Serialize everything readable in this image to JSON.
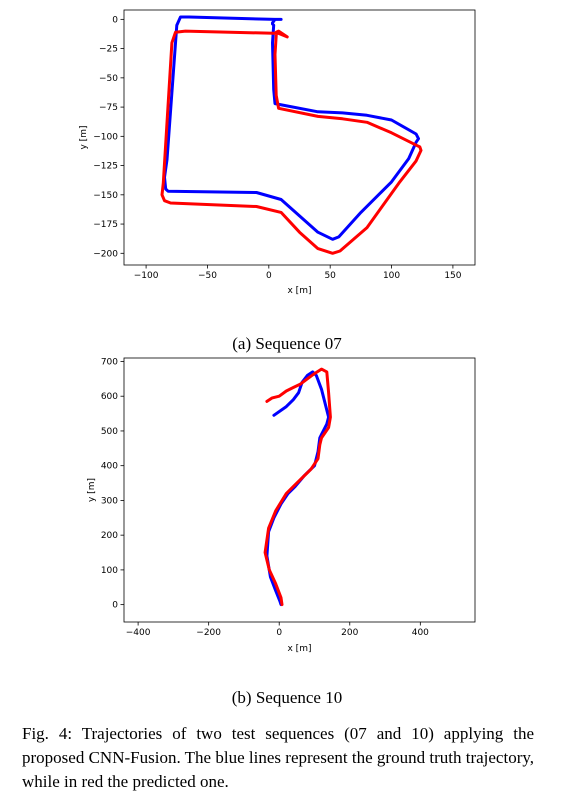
{
  "chart_data": [
    {
      "type": "line",
      "caption": "(a) Sequence 07",
      "xlabel": "x [m]",
      "ylabel": "y [m]",
      "xlim": [
        -118,
        168
      ],
      "ylim": [
        -210,
        8
      ],
      "xticks": [
        -100,
        -50,
        0,
        50,
        100,
        150
      ],
      "yticks": [
        0,
        -25,
        -50,
        -75,
        -100,
        -125,
        -150,
        -175,
        -200
      ],
      "xtick_labels": [
        "−100",
        "−50",
        "0",
        "50",
        "100",
        "150"
      ],
      "ytick_labels": [
        "0",
        "−25",
        "−50",
        "−75",
        "−100",
        "−125",
        "−150",
        "−175",
        "−200"
      ],
      "grid": false,
      "series": [
        {
          "color": "#0000ff",
          "x": [
            10,
            5,
            -65,
            -72,
            -75,
            -83,
            -85,
            -84,
            -82,
            -10,
            10,
            25,
            40,
            52,
            57,
            75,
            100,
            114,
            120,
            122,
            120,
            100,
            80,
            60,
            40,
            5,
            4,
            3,
            4,
            3,
            3,
            5
          ],
          "y": [
            0,
            0,
            2,
            2,
            -5,
            -120,
            -135,
            -145,
            -147,
            -148,
            -154,
            -168,
            -182,
            -188,
            -186,
            -165,
            -139,
            -119,
            -105,
            -102,
            -98,
            -86,
            -82,
            -80,
            -79,
            -72,
            -60,
            -20,
            -5,
            -4,
            -3,
            0
          ]
        },
        {
          "color": "#ff0000",
          "x": [
            15,
            8,
            -68,
            -76,
            -79,
            -86,
            -87,
            -85,
            -80,
            -10,
            10,
            25,
            40,
            52,
            58,
            80,
            106,
            120,
            124,
            123,
            121,
            100,
            80,
            60,
            40,
            8,
            6,
            5,
            6,
            6,
            8,
            15
          ],
          "y": [
            -15,
            -12,
            -10,
            -11,
            -20,
            -140,
            -150,
            -155,
            -157,
            -160,
            -165,
            -182,
            -196,
            -200,
            -198,
            -178,
            -140,
            -121,
            -112,
            -109,
            -108,
            -97,
            -88,
            -85,
            -83,
            -76,
            -65,
            -30,
            -14,
            -11,
            -10,
            -15
          ]
        }
      ]
    },
    {
      "type": "line",
      "caption": "(b) Sequence 10",
      "xlabel": "x [m]",
      "ylabel": "y [m]",
      "xlim": [
        -440,
        555
      ],
      "ylim": [
        -50,
        710
      ],
      "xticks": [
        -400,
        -200,
        0,
        200,
        400
      ],
      "yticks": [
        0,
        100,
        200,
        300,
        400,
        500,
        600,
        700
      ],
      "xtick_labels": [
        "−400",
        "−200",
        "0",
        "200",
        "400"
      ],
      "ytick_labels": [
        "0",
        "100",
        "200",
        "300",
        "400",
        "500",
        "600",
        "700"
      ],
      "grid": false,
      "series": [
        {
          "color": "#0000ff",
          "x": [
            5,
            2,
            -10,
            -25,
            -35,
            -30,
            -15,
            5,
            25,
            45,
            70,
            100,
            110,
            115,
            120,
            135,
            140,
            120,
            105,
            95,
            80,
            65,
            55,
            40,
            20,
            -15
          ],
          "y": [
            0,
            10,
            40,
            80,
            140,
            210,
            250,
            290,
            320,
            340,
            370,
            400,
            440,
            480,
            490,
            520,
            540,
            620,
            660,
            670,
            660,
            640,
            610,
            590,
            570,
            545
          ]
        },
        {
          "color": "#ff0000",
          "x": [
            8,
            5,
            -10,
            -28,
            -40,
            -30,
            -10,
            20,
            40,
            60,
            90,
            110,
            115,
            120,
            140,
            145,
            140,
            135,
            120,
            100,
            80,
            60,
            40,
            20,
            0,
            -20,
            -35
          ],
          "y": [
            0,
            20,
            60,
            100,
            150,
            220,
            270,
            320,
            340,
            360,
            390,
            420,
            460,
            480,
            510,
            540,
            610,
            670,
            678,
            665,
            650,
            635,
            625,
            615,
            600,
            595,
            585
          ]
        }
      ]
    }
  ],
  "figure_caption": "Fig. 4: Trajectories of two test sequences (07 and 10) applying the proposed CNN-Fusion. The blue lines represent the ground truth trajectory, while in red the predicted one."
}
